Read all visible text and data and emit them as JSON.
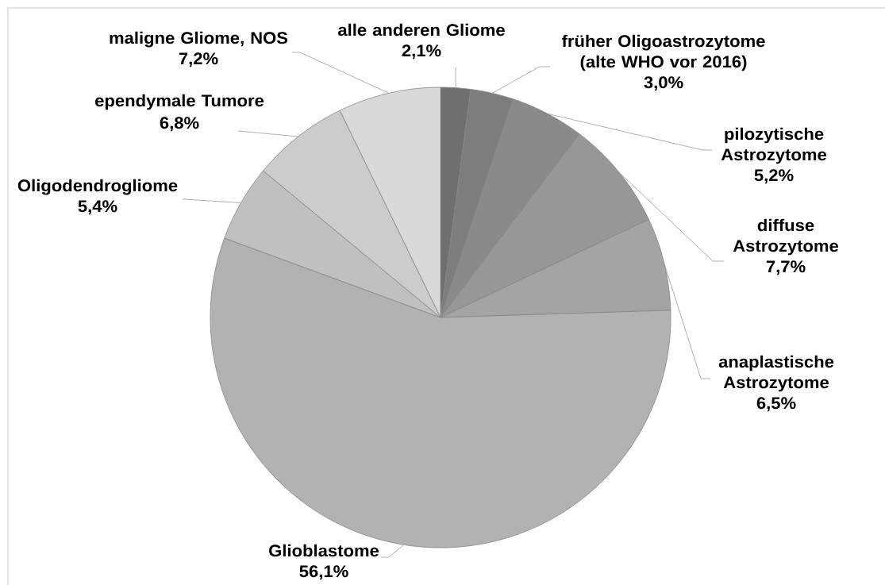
{
  "chart_data": {
    "type": "pie",
    "categories": [
      "alle anderen Gliome",
      "früher Oligoastrozytome (alte WHO vor 2016)",
      "pilozytische Astrozytome",
      "diffuse Astrozytome",
      "anaplastische Astrozytome",
      "Glioblastome",
      "Oligodendrogliome",
      "ependymale Tumore",
      "maligne Gliome, NOS"
    ],
    "values": [
      2.1,
      3.0,
      5.2,
      7.7,
      6.5,
      56.1,
      5.4,
      6.8,
      7.2
    ],
    "value_labels": [
      "2,1%",
      "3,0%",
      "5,2%",
      "7,7%",
      "6,5%",
      "56,1%",
      "5,4%",
      "6,8%",
      "7,2%"
    ],
    "colors": [
      "#6f6f6f",
      "#7d7d7d",
      "#8a8a8a",
      "#979797",
      "#a4a4a4",
      "#b2b2b2",
      "#c0c0c0",
      "#cccccc",
      "#d9d9d9"
    ]
  }
}
